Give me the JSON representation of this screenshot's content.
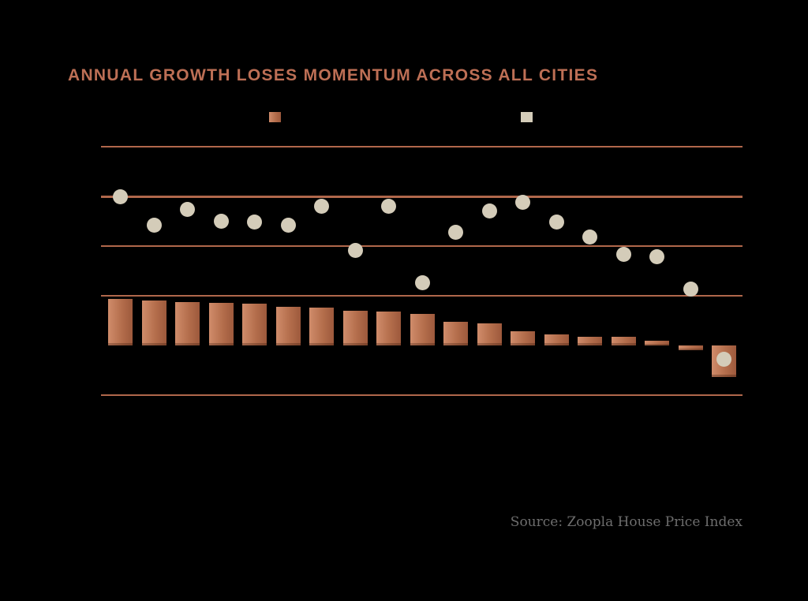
{
  "header": {
    "title": "ANNUAL GROWTH LOSES MOMENTUM ACROSS ALL CITIES"
  },
  "legend": {
    "items": [
      {
        "label": "",
        "swatch": "bar-series"
      },
      {
        "label": "",
        "swatch": "dot-series"
      }
    ]
  },
  "chart_data": {
    "type": "bar",
    "subtype": "bars-with-dot-markers",
    "title": "ANNUAL GROWTH LOSES MOMENTUM ACROSS ALL CITIES",
    "xlabel": "",
    "ylabel": "",
    "x_tick_labels_visible": false,
    "y_tick_labels_visible": false,
    "n_points": 19,
    "series": [
      {
        "name": "terracotta-bars",
        "marker": "bar",
        "values": [
          4.7,
          4.5,
          4.4,
          4.3,
          4.2,
          3.9,
          3.8,
          3.5,
          3.4,
          3.2,
          2.4,
          2.2,
          1.4,
          1.1,
          0.9,
          0.9,
          0.5,
          -0.5,
          -3.2
        ]
      },
      {
        "name": "cream-dots",
        "marker": "dot",
        "values": [
          15.0,
          12.1,
          13.7,
          12.5,
          12.4,
          12.1,
          14.0,
          9.6,
          14.0,
          6.3,
          11.4,
          13.5,
          14.4,
          12.4,
          10.9,
          9.2,
          8.9,
          5.7,
          -1.4
        ]
      }
    ],
    "ylim": [
      -5,
      20
    ],
    "gridline_interval": 5,
    "gridlines": [
      {
        "value": 20,
        "weight": 2
      },
      {
        "value": 15,
        "weight": 3
      },
      {
        "value": 10,
        "weight": 2
      },
      {
        "value": 5,
        "weight": 2
      },
      {
        "value": -5,
        "weight": 2
      }
    ],
    "zero_baseline_drawn": false,
    "legend_position": "top",
    "values_unit": "percent-estimated-from-gridlines"
  },
  "source": {
    "text": "Source: Zoopla House Price Index"
  },
  "colors": {
    "background": "#000000",
    "title": "#bd6f55",
    "gridline": "#b0674b",
    "bar_gradient_start": "#d08c6b",
    "bar_gradient_mid": "#b46e4c",
    "bar_gradient_end": "#9d593c",
    "dot": "#d4ccb9",
    "source_text": "#6d6d6d"
  }
}
